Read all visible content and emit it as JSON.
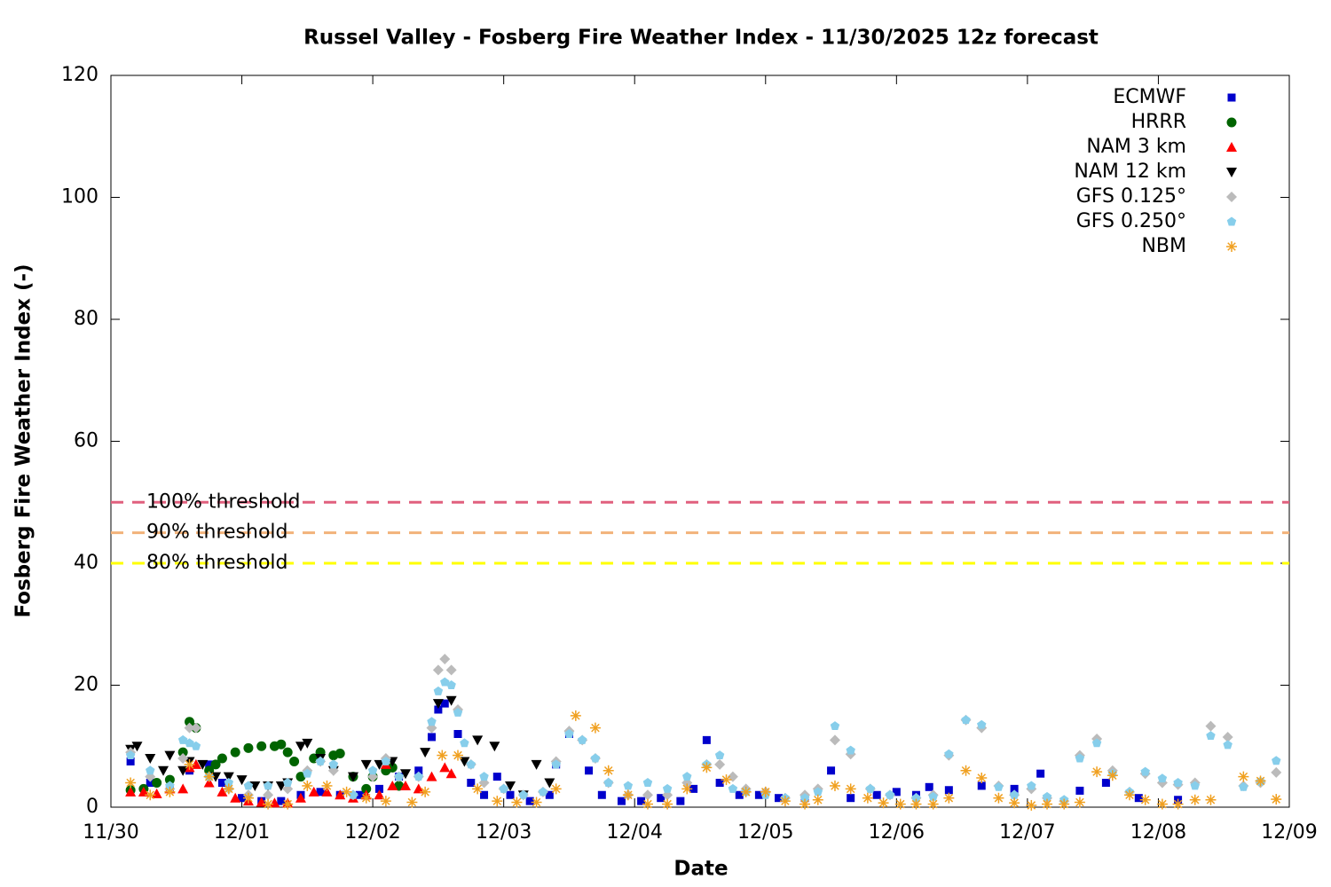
{
  "chart_data": {
    "type": "scatter",
    "title": "Russel Valley - Fosberg Fire Weather Index - 11/30/2025 12z forecast",
    "x_label": "Date",
    "y_label": "Fosberg Fire Weather Index (-)",
    "xlim": [
      0,
      9
    ],
    "xticks": [
      {
        "value": 0,
        "label": "11/30"
      },
      {
        "value": 1,
        "label": "12/01"
      },
      {
        "value": 2,
        "label": "12/02"
      },
      {
        "value": 3,
        "label": "12/03"
      },
      {
        "value": 4,
        "label": "12/04"
      },
      {
        "value": 5,
        "label": "12/05"
      },
      {
        "value": 6,
        "label": "12/06"
      },
      {
        "value": 7,
        "label": "12/07"
      },
      {
        "value": 8,
        "label": "12/08"
      },
      {
        "value": 9,
        "label": "12/09"
      }
    ],
    "ylim": [
      0,
      120
    ],
    "yticks": [
      0,
      20,
      40,
      60,
      80,
      100,
      120
    ],
    "legend": "top-right",
    "thresholds": [
      {
        "label": "100% threshold",
        "value": 50,
        "color": "#e0607e"
      },
      {
        "label": "90% threshold",
        "value": 45,
        "color": "#f2b27a"
      },
      {
        "label": "80% threshold",
        "value": 40,
        "color": "#ffff00"
      }
    ],
    "series": [
      {
        "name": "ECMWF",
        "color": "#0000cc",
        "marker": "square",
        "x": [
          0.15,
          0.3,
          0.45,
          0.6,
          0.75,
          0.85,
          1.0,
          1.15,
          1.3,
          1.45,
          1.6,
          1.75,
          1.9,
          2.05,
          2.2,
          2.35,
          2.45,
          2.5,
          2.55,
          2.65,
          2.75,
          2.85,
          2.95,
          3.05,
          3.2,
          3.35,
          3.4,
          3.5,
          3.65,
          3.75,
          3.9,
          4.05,
          4.2,
          4.35,
          4.45,
          4.55,
          4.65,
          4.8,
          4.95,
          5.1,
          5.3,
          5.5,
          5.65,
          5.85,
          6.0,
          6.15,
          6.25,
          6.4,
          6.65,
          6.9,
          7.1,
          7.4,
          7.6,
          7.85,
          8.15
        ],
        "values": [
          7.5,
          4,
          3,
          6,
          7,
          4,
          1.5,
          1,
          1,
          2,
          2.5,
          2,
          2,
          3,
          5,
          6,
          11.5,
          16,
          17,
          12,
          4,
          2,
          5,
          2,
          1,
          2,
          7,
          12,
          6,
          2,
          1,
          1,
          1.5,
          1,
          3,
          11,
          4,
          2,
          2,
          1.5,
          1.5,
          6,
          1.5,
          2,
          2.5,
          2,
          3.3,
          2.8,
          3.5,
          3,
          5.5,
          2.7,
          4,
          1.5,
          1.2
        ]
      },
      {
        "name": "HRRR",
        "color": "#006400",
        "marker": "circle",
        "x": [
          0.15,
          0.25,
          0.35,
          0.45,
          0.55,
          0.6,
          0.65,
          0.75,
          0.8,
          0.85,
          0.95,
          1.05,
          1.15,
          1.25,
          1.3,
          1.35,
          1.4,
          1.45,
          1.55,
          1.6,
          1.7,
          1.75,
          1.85,
          1.95,
          2.0,
          2.1,
          2.15,
          2.2
        ],
        "values": [
          2.8,
          3,
          4,
          4.5,
          9,
          14,
          13,
          6,
          7,
          8,
          9,
          9.7,
          10,
          10,
          10.3,
          9,
          7.5,
          5,
          8,
          9,
          8.5,
          8.8,
          5,
          3,
          5,
          6,
          6.5,
          3.5
        ]
      },
      {
        "name": "NAM 3 km",
        "color": "#ff0000",
        "marker": "triangle",
        "x": [
          0.15,
          0.25,
          0.35,
          0.45,
          0.55,
          0.6,
          0.65,
          0.75,
          0.85,
          0.95,
          1.05,
          1.15,
          1.25,
          1.35,
          1.45,
          1.55,
          1.65,
          1.75,
          1.85,
          1.95,
          2.05,
          2.1,
          2.15,
          2.25,
          2.35,
          2.45,
          2.55,
          2.6
        ],
        "values": [
          2.5,
          2.5,
          2.2,
          3,
          3,
          6.5,
          7,
          4,
          2.5,
          1.5,
          1,
          0.8,
          0.7,
          0.7,
          1.5,
          2.5,
          2.5,
          2,
          1.5,
          2,
          2,
          7,
          3.5,
          3.5,
          3,
          5,
          6.5,
          5.5
        ]
      },
      {
        "name": "NAM 12 km",
        "color": "#000000",
        "marker": "triangle-down",
        "x": [
          0.15,
          0.2,
          0.3,
          0.4,
          0.45,
          0.55,
          0.6,
          0.7,
          0.8,
          0.9,
          1.0,
          1.1,
          1.2,
          1.3,
          1.35,
          1.45,
          1.5,
          1.6,
          1.7,
          1.85,
          1.95,
          2.05,
          2.15,
          2.25,
          2.4,
          2.5,
          2.6,
          2.7,
          2.8,
          2.93,
          3.05,
          3.15,
          3.25,
          3.35
        ],
        "values": [
          9.5,
          10,
          8,
          6,
          8.5,
          6,
          7.5,
          7,
          5,
          5,
          4.5,
          3.5,
          3.5,
          3.5,
          4,
          10,
          10.5,
          8,
          6,
          5,
          7,
          7,
          7.5,
          5.5,
          9,
          17,
          17.5,
          7.5,
          11,
          10,
          3.5,
          2,
          7,
          4
        ]
      },
      {
        "name": "GFS 0.125°",
        "color": "#bbbbbb",
        "marker": "diamond",
        "x": [
          0.15,
          0.3,
          0.45,
          0.55,
          0.6,
          0.65,
          0.75,
          0.9,
          1.05,
          1.2,
          1.35,
          1.5,
          1.6,
          1.7,
          1.85,
          2.0,
          2.1,
          2.2,
          2.35,
          2.45,
          2.5,
          2.55,
          2.6,
          2.65,
          2.75,
          2.85,
          3.0,
          3.15,
          3.3,
          3.4,
          3.5,
          3.6,
          3.7,
          3.8,
          3.95,
          4.1,
          4.25,
          4.4,
          4.55,
          4.65,
          4.75,
          4.85,
          5.0,
          5.15,
          5.3,
          5.4,
          5.53,
          5.65,
          5.8,
          5.95,
          6.15,
          6.28,
          6.4,
          6.53,
          6.65,
          6.78,
          6.9,
          7.03,
          7.15,
          7.28,
          7.4,
          7.53,
          7.65,
          7.78,
          7.9,
          8.03,
          8.15,
          8.28,
          8.4,
          8.53,
          8.65,
          8.78,
          8.9
        ],
        "values": [
          9,
          5,
          3,
          8,
          13,
          13,
          5,
          3,
          2,
          2,
          3,
          6,
          7.5,
          6,
          2,
          5,
          8,
          5,
          5,
          13,
          22.5,
          24.3,
          22.5,
          16,
          7,
          4,
          3,
          2,
          2.5,
          7.5,
          12.5,
          11,
          8,
          4,
          2,
          2,
          2,
          4,
          7,
          7,
          5,
          3,
          2.5,
          1.5,
          2,
          3,
          11,
          8.7,
          3,
          2,
          1.5,
          2,
          8.5,
          14.3,
          13,
          3.5,
          2,
          3,
          1.5,
          1,
          8.5,
          11.2,
          6,
          2.5,
          5.5,
          4,
          3.7,
          4,
          13.3,
          11.5,
          3.5,
          4,
          5.7
        ]
      },
      {
        "name": "GFS 0.250°",
        "color": "#87ceeb",
        "marker": "pentagon",
        "x": [
          0.15,
          0.3,
          0.45,
          0.55,
          0.6,
          0.65,
          0.75,
          0.9,
          1.05,
          1.2,
          1.35,
          1.5,
          1.6,
          1.7,
          1.85,
          2.0,
          2.1,
          2.2,
          2.35,
          2.45,
          2.5,
          2.55,
          2.6,
          2.65,
          2.7,
          2.75,
          2.85,
          3.0,
          3.15,
          3.3,
          3.4,
          3.5,
          3.6,
          3.7,
          3.8,
          3.95,
          4.1,
          4.25,
          4.4,
          4.55,
          4.65,
          4.75,
          4.85,
          5.0,
          5.15,
          5.3,
          5.4,
          5.53,
          5.65,
          5.8,
          5.95,
          6.15,
          6.28,
          6.4,
          6.53,
          6.65,
          6.78,
          6.9,
          7.03,
          7.15,
          7.28,
          7.4,
          7.53,
          7.65,
          7.78,
          7.9,
          8.03,
          8.15,
          8.28,
          8.4,
          8.53,
          8.65,
          8.78,
          8.9
        ],
        "values": [
          8.5,
          6,
          3.5,
          11,
          10.5,
          10,
          5,
          4,
          3.5,
          3.5,
          4,
          5.5,
          7.5,
          7,
          2,
          6,
          7.5,
          5,
          5,
          14,
          19,
          20.5,
          20,
          15.5,
          10.5,
          7,
          5,
          3,
          2,
          2.5,
          7,
          12,
          11,
          8,
          4,
          3.5,
          4,
          3,
          5,
          7,
          8.5,
          3,
          2.5,
          2,
          1.5,
          1.5,
          2.5,
          13.3,
          9.3,
          3,
          2,
          1.5,
          1.7,
          8.7,
          14.3,
          13.5,
          3.3,
          2,
          3.5,
          1.7,
          1.2,
          8,
          10.5,
          5.5,
          2.5,
          5.8,
          4.7,
          4,
          3.5,
          11.7,
          10.2,
          3.3,
          4.2,
          7.6
        ]
      },
      {
        "name": "NBM",
        "color": "#f0a020",
        "marker": "asterisk",
        "x": [
          0.15,
          0.3,
          0.45,
          0.6,
          0.75,
          0.9,
          1.05,
          1.2,
          1.35,
          1.5,
          1.65,
          1.8,
          1.95,
          2.1,
          2.3,
          2.4,
          2.53,
          2.65,
          2.8,
          2.95,
          3.1,
          3.25,
          3.4,
          3.55,
          3.7,
          3.8,
          3.95,
          4.1,
          4.25,
          4.4,
          4.55,
          4.7,
          4.85,
          5.0,
          5.15,
          5.3,
          5.4,
          5.53,
          5.65,
          5.78,
          5.9,
          6.03,
          6.15,
          6.28,
          6.4,
          6.53,
          6.65,
          6.78,
          6.9,
          7.03,
          7.15,
          7.28,
          7.4,
          7.53,
          7.65,
          7.78,
          7.9,
          8.03,
          8.15,
          8.28,
          8.4,
          8.65,
          8.78,
          8.9
        ],
        "values": [
          4,
          2,
          2.5,
          7,
          5,
          3,
          1.5,
          0.5,
          0.5,
          3.5,
          3.5,
          2.5,
          1.5,
          1,
          0.8,
          2.5,
          8.5,
          8.5,
          3,
          1,
          0.8,
          0.8,
          3,
          15,
          13,
          6,
          2,
          0.5,
          0.5,
          3,
          6.5,
          4.5,
          2.5,
          2.5,
          1,
          0.5,
          1.2,
          3.5,
          3,
          1.5,
          0.7,
          0.5,
          0.5,
          0.5,
          1.5,
          6,
          4.8,
          1.5,
          0.7,
          0.3,
          0.5,
          0.5,
          0.8,
          5.8,
          5.2,
          2,
          1.2,
          0.5,
          0.5,
          1.2,
          1.2,
          5,
          4.3,
          1.3
        ]
      }
    ]
  }
}
